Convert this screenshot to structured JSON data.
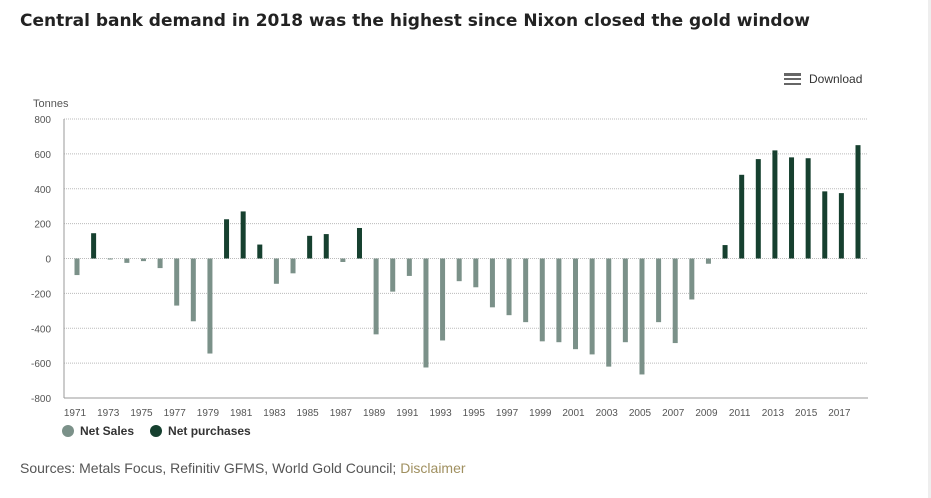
{
  "title": "Central bank demand in 2018 was the highest since Nixon closed the gold window",
  "download_label": "Download",
  "sources_text": "Sources: Metals Focus, Refinitiv GFMS, World Gold Council; ",
  "disclaimer_label": "Disclaimer",
  "chart_data": {
    "type": "bar",
    "ylabel": "Tonnes",
    "ylim": [
      -800,
      800
    ],
    "yticks": [
      800,
      600,
      400,
      200,
      0,
      -200,
      -400,
      -600,
      -800
    ],
    "grid": true,
    "legend_placement": "bottom-left",
    "colors": {
      "Net Sales": "#7b9189",
      "Net purchases": "#16402f"
    },
    "legend": [
      "Net Sales",
      "Net purchases"
    ],
    "categories": [
      1971,
      1972,
      1973,
      1974,
      1975,
      1976,
      1977,
      1978,
      1979,
      1980,
      1981,
      1982,
      1983,
      1984,
      1985,
      1986,
      1987,
      1988,
      1989,
      1990,
      1991,
      1992,
      1993,
      1994,
      1995,
      1996,
      1997,
      1998,
      1999,
      2000,
      2001,
      2002,
      2003,
      2004,
      2005,
      2006,
      2007,
      2008,
      2009,
      2010,
      2011,
      2012,
      2013,
      2014,
      2015,
      2016,
      2017,
      2018
    ],
    "xtick_labels": [
      "1971",
      "1973",
      "1975",
      "1977",
      "1979",
      "1981",
      "1983",
      "1985",
      "1987",
      "1989",
      "1991",
      "1993",
      "1995",
      "1997",
      "1999",
      "2001",
      "2003",
      "2005",
      "2007",
      "2009",
      "2011",
      "2013",
      "2015",
      "2017"
    ],
    "values": [
      -95,
      145,
      -5,
      -25,
      -15,
      -55,
      -270,
      -360,
      -545,
      225,
      270,
      80,
      -145,
      -85,
      130,
      140,
      -20,
      175,
      -435,
      -190,
      -100,
      -625,
      -470,
      -130,
      -165,
      -280,
      -325,
      -365,
      -475,
      -480,
      -520,
      -550,
      -620,
      -480,
      -665,
      -365,
      -485,
      -235,
      -30,
      77,
      480,
      570,
      620,
      580,
      575,
      385,
      375,
      650
    ]
  }
}
